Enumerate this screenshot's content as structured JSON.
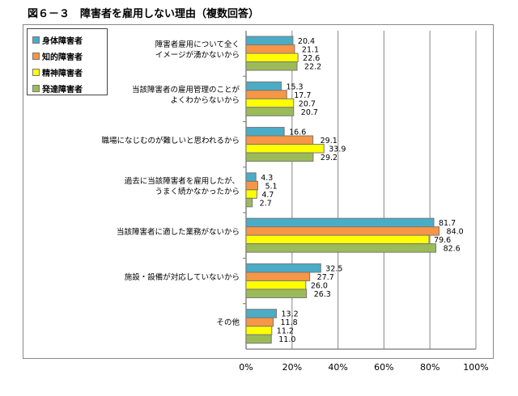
{
  "title": "図６－３　障害者を雇用しない理由（複数回答）",
  "chart_data": {
    "type": "bar",
    "orientation": "horizontal",
    "title": "図６－３　障害者を雇用しない理由（複数回答）",
    "categories": [
      [
        "障害者雇用について全く",
        "イメージが湧かないから"
      ],
      [
        "当該障害者の雇用管理のことが",
        "よくわからないから"
      ],
      [
        "職場になじむのが難しいと思われるから"
      ],
      [
        "過去に当該障害者を雇用したが、",
        "うまく続かなかったから"
      ],
      [
        "当該障害者に適した業務がないから"
      ],
      [
        "施設・設備が対応していないから"
      ],
      [
        "その他"
      ]
    ],
    "series": [
      {
        "name": "身体障害者",
        "color": "#4BACC6",
        "values": [
          20.4,
          15.3,
          16.6,
          4.3,
          81.7,
          32.5,
          13.2
        ]
      },
      {
        "name": "知的障害者",
        "color": "#F79646",
        "values": [
          21.1,
          17.7,
          29.1,
          5.1,
          84.0,
          27.7,
          11.8
        ]
      },
      {
        "name": "精神障害者",
        "color": "#FFFF00",
        "values": [
          22.6,
          20.7,
          33.9,
          4.7,
          79.6,
          26.0,
          11.2
        ]
      },
      {
        "name": "発達障害者",
        "color": "#9BBB59",
        "values": [
          22.2,
          20.7,
          29.2,
          2.7,
          82.6,
          26.3,
          11.0
        ]
      }
    ],
    "xlim": [
      0,
      100
    ],
    "xticks": [
      "0%",
      "20%",
      "40%",
      "60%",
      "80%",
      "100%"
    ],
    "grid": true,
    "legend": "top-left"
  }
}
